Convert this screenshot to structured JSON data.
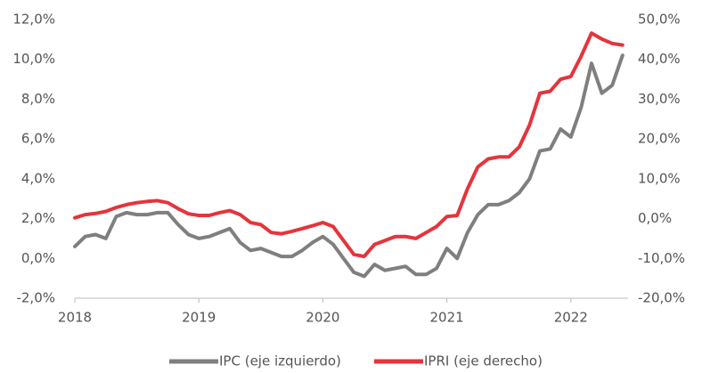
{
  "chart_data": {
    "type": "line",
    "categories": [
      "2018",
      null,
      null,
      null,
      null,
      null,
      null,
      null,
      null,
      null,
      null,
      null,
      "2019",
      null,
      null,
      null,
      null,
      null,
      null,
      null,
      null,
      null,
      null,
      null,
      "2020",
      null,
      null,
      null,
      null,
      null,
      null,
      null,
      null,
      null,
      null,
      null,
      "2021",
      null,
      null,
      null,
      null,
      null,
      null,
      null,
      null,
      null,
      null,
      null,
      "2022",
      null,
      null,
      null,
      null,
      null
    ],
    "series": [
      {
        "name": "IPC (eje izquierdo)",
        "color": "#7f7f7f",
        "axis": "y",
        "values": [
          0.6,
          1.1,
          1.2,
          1.0,
          2.1,
          2.3,
          2.2,
          2.2,
          2.3,
          2.3,
          1.7,
          1.2,
          1.0,
          1.1,
          1.3,
          1.5,
          0.8,
          0.4,
          0.5,
          0.3,
          0.1,
          0.1,
          0.4,
          0.8,
          1.1,
          0.7,
          0.0,
          -0.7,
          -0.9,
          -0.3,
          -0.6,
          -0.5,
          -0.4,
          -0.8,
          -0.8,
          -0.5,
          0.5,
          0.0,
          1.3,
          2.2,
          2.7,
          2.7,
          2.9,
          3.3,
          4.0,
          5.4,
          5.5,
          6.5,
          6.1,
          7.6,
          9.8,
          8.3,
          8.7,
          10.2
        ]
      },
      {
        "name": "IPRI (eje derecho)",
        "color": "#e5343c",
        "axis": "y2",
        "values": [
          0.2,
          1.0,
          1.3,
          1.8,
          2.8,
          3.5,
          4.0,
          4.3,
          4.5,
          4.0,
          2.5,
          1.2,
          0.8,
          0.8,
          1.5,
          2.0,
          1.0,
          -1.0,
          -1.5,
          -3.5,
          -3.8,
          -3.2,
          -2.5,
          -1.8,
          -1.0,
          -2.0,
          -5.5,
          -9.0,
          -9.5,
          -6.5,
          -5.5,
          -4.5,
          -4.5,
          -5.0,
          -3.5,
          -2.0,
          0.5,
          0.8,
          7.5,
          13.0,
          15.0,
          15.5,
          15.5,
          18.0,
          23.5,
          31.5,
          32.0,
          35.0,
          35.7,
          40.8,
          46.6,
          45.1,
          44.0,
          43.6
        ]
      }
    ],
    "ylim": [
      -2,
      12
    ],
    "yticks": [
      {
        "value": -2,
        "label": "-2,0%"
      },
      {
        "value": 0,
        "label": "0,0%"
      },
      {
        "value": 2,
        "label": "2,0%"
      },
      {
        "value": 4,
        "label": "4,0%"
      },
      {
        "value": 6,
        "label": "6,0%"
      },
      {
        "value": 8,
        "label": "8,0%"
      },
      {
        "value": 10,
        "label": "10,0%"
      },
      {
        "value": 12,
        "label": "12,0%"
      }
    ],
    "y2lim": [
      -20,
      50
    ],
    "y2ticks": [
      {
        "value": -20,
        "label": "-20,0%"
      },
      {
        "value": -10,
        "label": "-10,0%"
      },
      {
        "value": 0,
        "label": "0,0%"
      },
      {
        "value": 10,
        "label": "10,0%"
      },
      {
        "value": 20,
        "label": "20,0%"
      },
      {
        "value": 30,
        "label": "30,0%"
      },
      {
        "value": 40,
        "label": "40,0%"
      },
      {
        "value": 50,
        "label": "50,0%"
      }
    ],
    "legend": "bottom"
  }
}
